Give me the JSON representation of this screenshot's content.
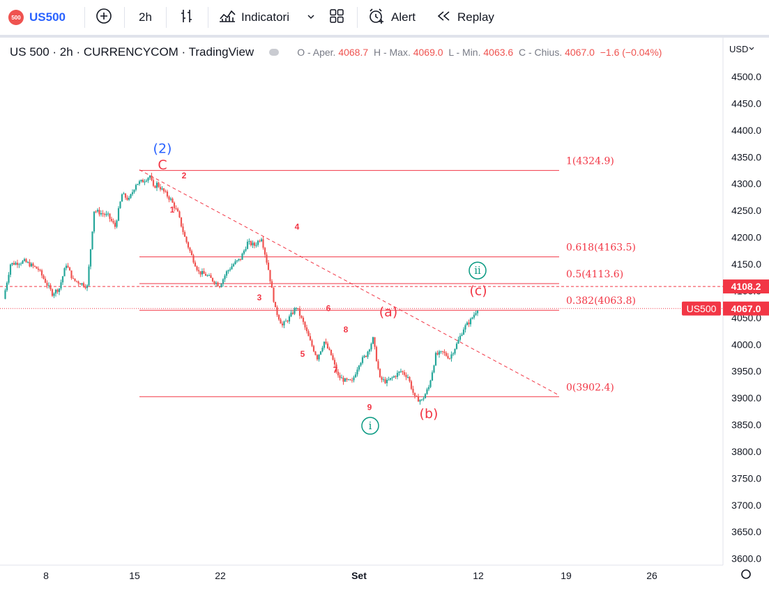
{
  "toolbar": {
    "symbol_badge": "500",
    "symbol": "US500",
    "interval": "2h",
    "indicators_label": "Indicatori",
    "alert_label": "Alert",
    "replay_label": "Replay",
    "icons": [
      "add-symbol-icon",
      "bar-style-icon",
      "indicators-icon",
      "chevron-down-icon",
      "layout-icon",
      "alarm-icon",
      "replay-icon"
    ]
  },
  "legend": {
    "title": "US 500 · 2h · CURRENCYCOM · TradingView",
    "open_label": "O - Aper.",
    "open": "4068.7",
    "high_label": "H - Max.",
    "high": "4069.0",
    "low_label": "L - Min.",
    "low": "4063.6",
    "close_label": "C - Chius.",
    "close": "4067.0",
    "change": "−1.6 (−0.04%)"
  },
  "currency": "USD",
  "colors": {
    "up": "#26a69a",
    "down": "#ef5350",
    "fib": "#f23645",
    "wave_blue": "#2962ff",
    "wave_teal": "#089981"
  },
  "chart_data": {
    "type": "candlestick",
    "ylim": [
      3600,
      4500
    ],
    "yticks": [
      "4500.0",
      "4450.0",
      "4400.0",
      "4350.0",
      "4300.0",
      "4250.0",
      "4200.0",
      "4150.0",
      "4100.0",
      "4050.0",
      "4000.0",
      "3950.0",
      "3900.0",
      "3850.0",
      "3800.0",
      "3750.0",
      "3700.0",
      "3650.0",
      "3600.0"
    ],
    "xticks": [
      "8",
      "15",
      "22",
      "Set",
      "12",
      "19",
      "26"
    ],
    "path": [
      [
        0,
        4085
      ],
      [
        1,
        4150
      ],
      [
        3,
        4155
      ],
      [
        5,
        4140
      ],
      [
        7,
        4095
      ],
      [
        8,
        4105
      ],
      [
        9,
        4150
      ],
      [
        10,
        4120
      ],
      [
        11,
        4115
      ],
      [
        12,
        4108
      ],
      [
        13,
        4250
      ],
      [
        15,
        4240
      ],
      [
        16,
        4220
      ],
      [
        17,
        4280
      ],
      [
        18,
        4270
      ],
      [
        19,
        4300
      ],
      [
        20,
        4305
      ],
      [
        21,
        4315
      ],
      [
        21.5,
        4292
      ],
      [
        22,
        4300
      ],
      [
        23,
        4285
      ],
      [
        24,
        4270
      ],
      [
        25,
        4245
      ],
      [
        26,
        4200
      ],
      [
        27,
        4165
      ],
      [
        28,
        4135
      ],
      [
        29,
        4130
      ],
      [
        30,
        4120
      ],
      [
        31,
        4110
      ],
      [
        32,
        4135
      ],
      [
        33,
        4150
      ],
      [
        34,
        4160
      ],
      [
        35,
        4190
      ],
      [
        36,
        4185
      ],
      [
        37,
        4200
      ],
      [
        38,
        4140
      ],
      [
        39,
        4065
      ],
      [
        40,
        4035
      ],
      [
        41,
        4050
      ],
      [
        42,
        4070
      ],
      [
        43,
        4040
      ],
      [
        44,
        4005
      ],
      [
        45,
        3975
      ],
      [
        46,
        4005
      ],
      [
        47,
        3980
      ],
      [
        48,
        3940
      ],
      [
        49,
        3932
      ],
      [
        50,
        3930
      ],
      [
        51,
        3965
      ],
      [
        52,
        3980
      ],
      [
        53,
        4010
      ],
      [
        54,
        3935
      ],
      [
        55,
        3930
      ],
      [
        56,
        3940
      ],
      [
        57,
        3950
      ],
      [
        58,
        3940
      ],
      [
        59,
        3900
      ],
      [
        60,
        3895
      ],
      [
        61,
        3920
      ],
      [
        62,
        3980
      ],
      [
        63,
        3985
      ],
      [
        64,
        3975
      ],
      [
        65,
        4000
      ],
      [
        66,
        4030
      ],
      [
        67,
        4045
      ],
      [
        68,
        4067
      ]
    ],
    "last_price": "4067.0",
    "current_price_label": "US500",
    "h_line_price": "4108.2",
    "fib": [
      {
        "level": "1(4324.9)",
        "price": 4324.9
      },
      {
        "level": "0.618(4163.5)",
        "price": 4163.5
      },
      {
        "level": "0.5(4113.6)",
        "price": 4113.6
      },
      {
        "level": "0.382(4063.8)",
        "price": 4063.8
      },
      {
        "level": "0(3902.4)",
        "price": 3902.4
      }
    ],
    "trendline": [
      [
        4326,
        0
      ],
      [
        3905,
        1
      ]
    ],
    "wave_labels": [
      {
        "text": "(2)",
        "price": 4365,
        "color": "blue"
      },
      {
        "text": "C",
        "price": 4335,
        "color": "red"
      },
      {
        "text": "1",
        "price": 4254,
        "color": "red"
      },
      {
        "text": "2",
        "price": 4318,
        "color": "red"
      },
      {
        "text": "3",
        "price": 4090,
        "color": "red"
      },
      {
        "text": "4",
        "price": 4222,
        "color": "red"
      },
      {
        "text": "5",
        "price": 3985,
        "color": "red"
      },
      {
        "text": "6",
        "price": 4070,
        "color": "red"
      },
      {
        "text": "7",
        "price": 3955,
        "color": "red"
      },
      {
        "text": "8",
        "price": 4030,
        "color": "red"
      },
      {
        "text": "9",
        "price": 3885,
        "color": "red"
      },
      {
        "text": "(a)",
        "price": 4060,
        "color": "red"
      },
      {
        "text": "(b)",
        "price": 3870,
        "color": "red"
      },
      {
        "text": "(c)",
        "price": 4100,
        "color": "red"
      },
      {
        "text": "i",
        "price": 3848,
        "color": "teal"
      },
      {
        "text": "ii",
        "price": 4138,
        "color": "teal"
      }
    ]
  }
}
